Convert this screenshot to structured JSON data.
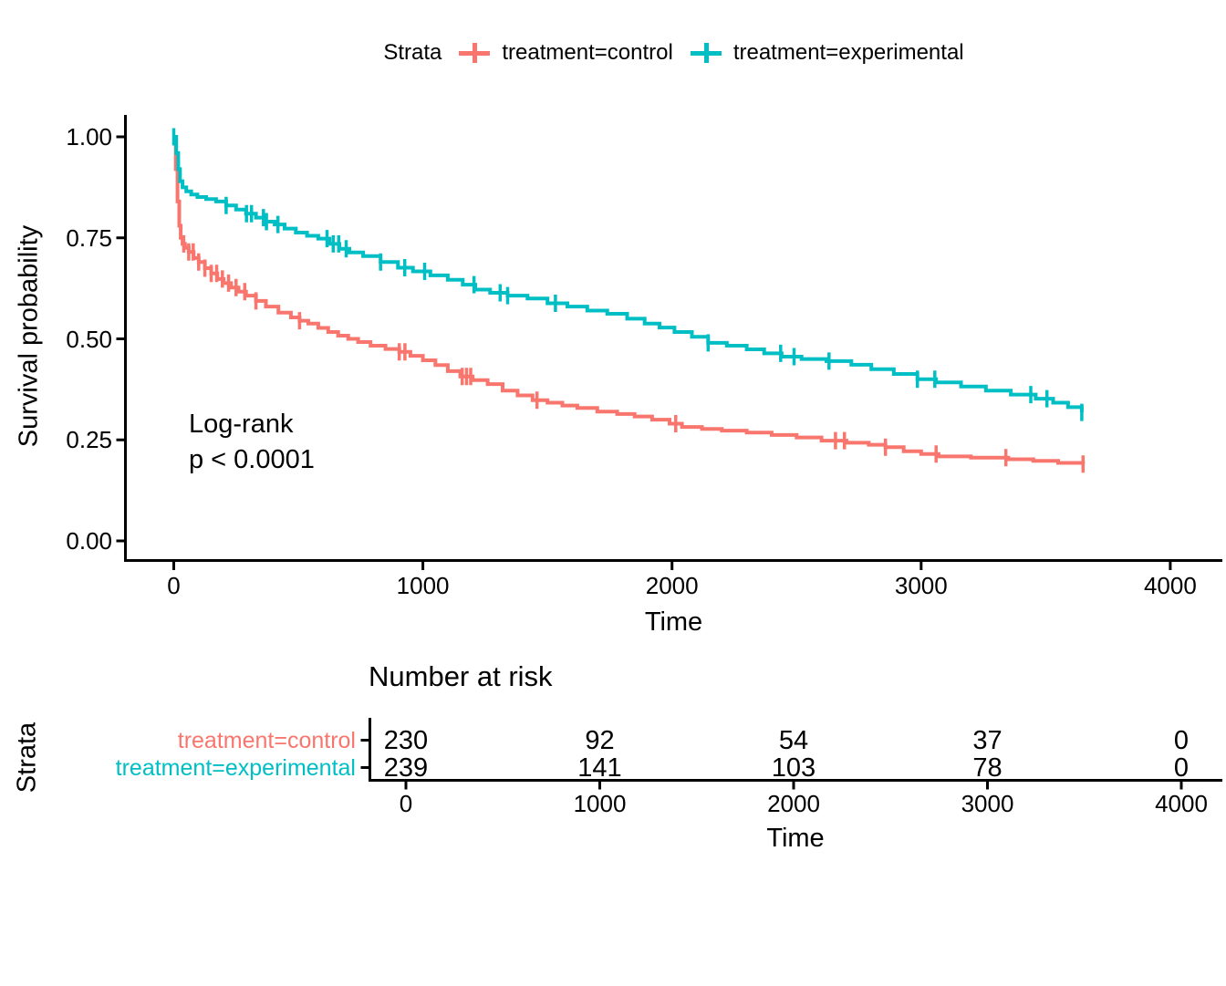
{
  "legend": {
    "title": "Strata",
    "entries": [
      {
        "label": "treatment=control",
        "color": "#F8766D"
      },
      {
        "label": "treatment=experimental",
        "color": "#00BFC4"
      }
    ]
  },
  "annotation": {
    "line1": "Log-rank",
    "line2": "p < 0.0001"
  },
  "chart_data": {
    "type": "line",
    "subtype": "kaplan-meier-step-survival",
    "title": "",
    "xlabel": "Time",
    "ylabel": "Survival probability",
    "xlim": [
      0,
      4200
    ],
    "ylim": [
      0,
      1
    ],
    "x_ticks": [
      0,
      1000,
      2000,
      3000,
      4000
    ],
    "y_ticks": [
      1.0,
      0.75,
      0.5,
      0.25,
      0.0
    ],
    "grid": false,
    "legend_position": "top",
    "series": [
      {
        "name": "treatment=control",
        "color": "#F8766D",
        "points": [
          [
            0,
            1.0
          ],
          [
            8,
            0.92
          ],
          [
            15,
            0.84
          ],
          [
            22,
            0.78
          ],
          [
            28,
            0.75
          ],
          [
            35,
            0.735
          ],
          [
            45,
            0.725
          ],
          [
            60,
            0.715
          ],
          [
            80,
            0.7
          ],
          [
            100,
            0.69
          ],
          [
            125,
            0.675
          ],
          [
            150,
            0.662
          ],
          [
            175,
            0.648
          ],
          [
            200,
            0.638
          ],
          [
            230,
            0.627
          ],
          [
            260,
            0.617
          ],
          [
            290,
            0.607
          ],
          [
            330,
            0.594
          ],
          [
            370,
            0.58
          ],
          [
            420,
            0.565
          ],
          [
            470,
            0.553
          ],
          [
            505,
            0.545
          ],
          [
            540,
            0.538
          ],
          [
            580,
            0.527
          ],
          [
            620,
            0.517
          ],
          [
            660,
            0.508
          ],
          [
            700,
            0.5
          ],
          [
            740,
            0.492
          ],
          [
            790,
            0.483
          ],
          [
            850,
            0.475
          ],
          [
            905,
            0.468
          ],
          [
            950,
            0.458
          ],
          [
            1000,
            0.447
          ],
          [
            1050,
            0.435
          ],
          [
            1100,
            0.42
          ],
          [
            1150,
            0.407
          ],
          [
            1200,
            0.398
          ],
          [
            1260,
            0.388
          ],
          [
            1320,
            0.372
          ],
          [
            1380,
            0.36
          ],
          [
            1440,
            0.348
          ],
          [
            1500,
            0.342
          ],
          [
            1560,
            0.335
          ],
          [
            1620,
            0.329
          ],
          [
            1700,
            0.32
          ],
          [
            1780,
            0.314
          ],
          [
            1850,
            0.308
          ],
          [
            1920,
            0.3
          ],
          [
            1990,
            0.29
          ],
          [
            2040,
            0.282
          ],
          [
            2120,
            0.277
          ],
          [
            2200,
            0.273
          ],
          [
            2300,
            0.268
          ],
          [
            2400,
            0.262
          ],
          [
            2500,
            0.256
          ],
          [
            2600,
            0.248
          ],
          [
            2700,
            0.243
          ],
          [
            2790,
            0.238
          ],
          [
            2857,
            0.232
          ],
          [
            2930,
            0.222
          ],
          [
            3000,
            0.215
          ],
          [
            3070,
            0.209
          ],
          [
            3200,
            0.206
          ],
          [
            3350,
            0.202
          ],
          [
            3450,
            0.198
          ],
          [
            3550,
            0.193
          ],
          [
            3650,
            0.19
          ]
        ],
        "censor_times": [
          40,
          60,
          78,
          100,
          125,
          150,
          172,
          195,
          220,
          250,
          285,
          330,
          505,
          905,
          928,
          1158,
          1175,
          1192,
          1458,
          2015,
          2656,
          2692,
          2857,
          3060,
          3340,
          3650
        ]
      },
      {
        "name": "treatment=experimental",
        "color": "#00BFC4",
        "points": [
          [
            0,
            1.0
          ],
          [
            10,
            0.96
          ],
          [
            18,
            0.92
          ],
          [
            25,
            0.89
          ],
          [
            35,
            0.875
          ],
          [
            50,
            0.865
          ],
          [
            70,
            0.857
          ],
          [
            95,
            0.851
          ],
          [
            130,
            0.846
          ],
          [
            170,
            0.84
          ],
          [
            210,
            0.83
          ],
          [
            250,
            0.82
          ],
          [
            290,
            0.81
          ],
          [
            330,
            0.8
          ],
          [
            365,
            0.79
          ],
          [
            405,
            0.783
          ],
          [
            445,
            0.773
          ],
          [
            490,
            0.763
          ],
          [
            535,
            0.755
          ],
          [
            580,
            0.748
          ],
          [
            625,
            0.735
          ],
          [
            665,
            0.723
          ],
          [
            705,
            0.714
          ],
          [
            760,
            0.705
          ],
          [
            830,
            0.69
          ],
          [
            900,
            0.676
          ],
          [
            960,
            0.667
          ],
          [
            1030,
            0.657
          ],
          [
            1100,
            0.646
          ],
          [
            1160,
            0.634
          ],
          [
            1210,
            0.622
          ],
          [
            1270,
            0.614
          ],
          [
            1340,
            0.607
          ],
          [
            1420,
            0.6
          ],
          [
            1500,
            0.588
          ],
          [
            1580,
            0.58
          ],
          [
            1660,
            0.57
          ],
          [
            1740,
            0.562
          ],
          [
            1820,
            0.55
          ],
          [
            1890,
            0.538
          ],
          [
            1950,
            0.528
          ],
          [
            2010,
            0.517
          ],
          [
            2080,
            0.505
          ],
          [
            2145,
            0.49
          ],
          [
            2220,
            0.483
          ],
          [
            2300,
            0.474
          ],
          [
            2370,
            0.464
          ],
          [
            2440,
            0.456
          ],
          [
            2520,
            0.45
          ],
          [
            2620,
            0.445
          ],
          [
            2720,
            0.436
          ],
          [
            2800,
            0.425
          ],
          [
            2890,
            0.413
          ],
          [
            2985,
            0.4
          ],
          [
            3060,
            0.392
          ],
          [
            3160,
            0.382
          ],
          [
            3260,
            0.372
          ],
          [
            3360,
            0.362
          ],
          [
            3460,
            0.352
          ],
          [
            3530,
            0.342
          ],
          [
            3590,
            0.331
          ],
          [
            3645,
            0.318
          ]
        ],
        "censor_times": [
          0,
          210,
          292,
          312,
          360,
          372,
          418,
          615,
          640,
          662,
          692,
          830,
          927,
          1007,
          1205,
          1310,
          1340,
          1532,
          2145,
          2436,
          2490,
          2630,
          2985,
          3055,
          3440,
          3505,
          3645
        ]
      }
    ],
    "annotation_lines": [
      "Log-rank",
      "p < 0.0001"
    ]
  },
  "risk_table": {
    "title": "Number at risk",
    "ylabel": "Strata",
    "xlabel": "Time",
    "x_ticks": [
      0,
      1000,
      2000,
      3000,
      4000
    ],
    "rows": [
      {
        "label": "treatment=control",
        "color": "#F8766D",
        "values": [
          230,
          92,
          54,
          37,
          0
        ]
      },
      {
        "label": "treatment=experimental",
        "color": "#00BFC4",
        "values": [
          239,
          141,
          103,
          78,
          0
        ]
      }
    ]
  }
}
